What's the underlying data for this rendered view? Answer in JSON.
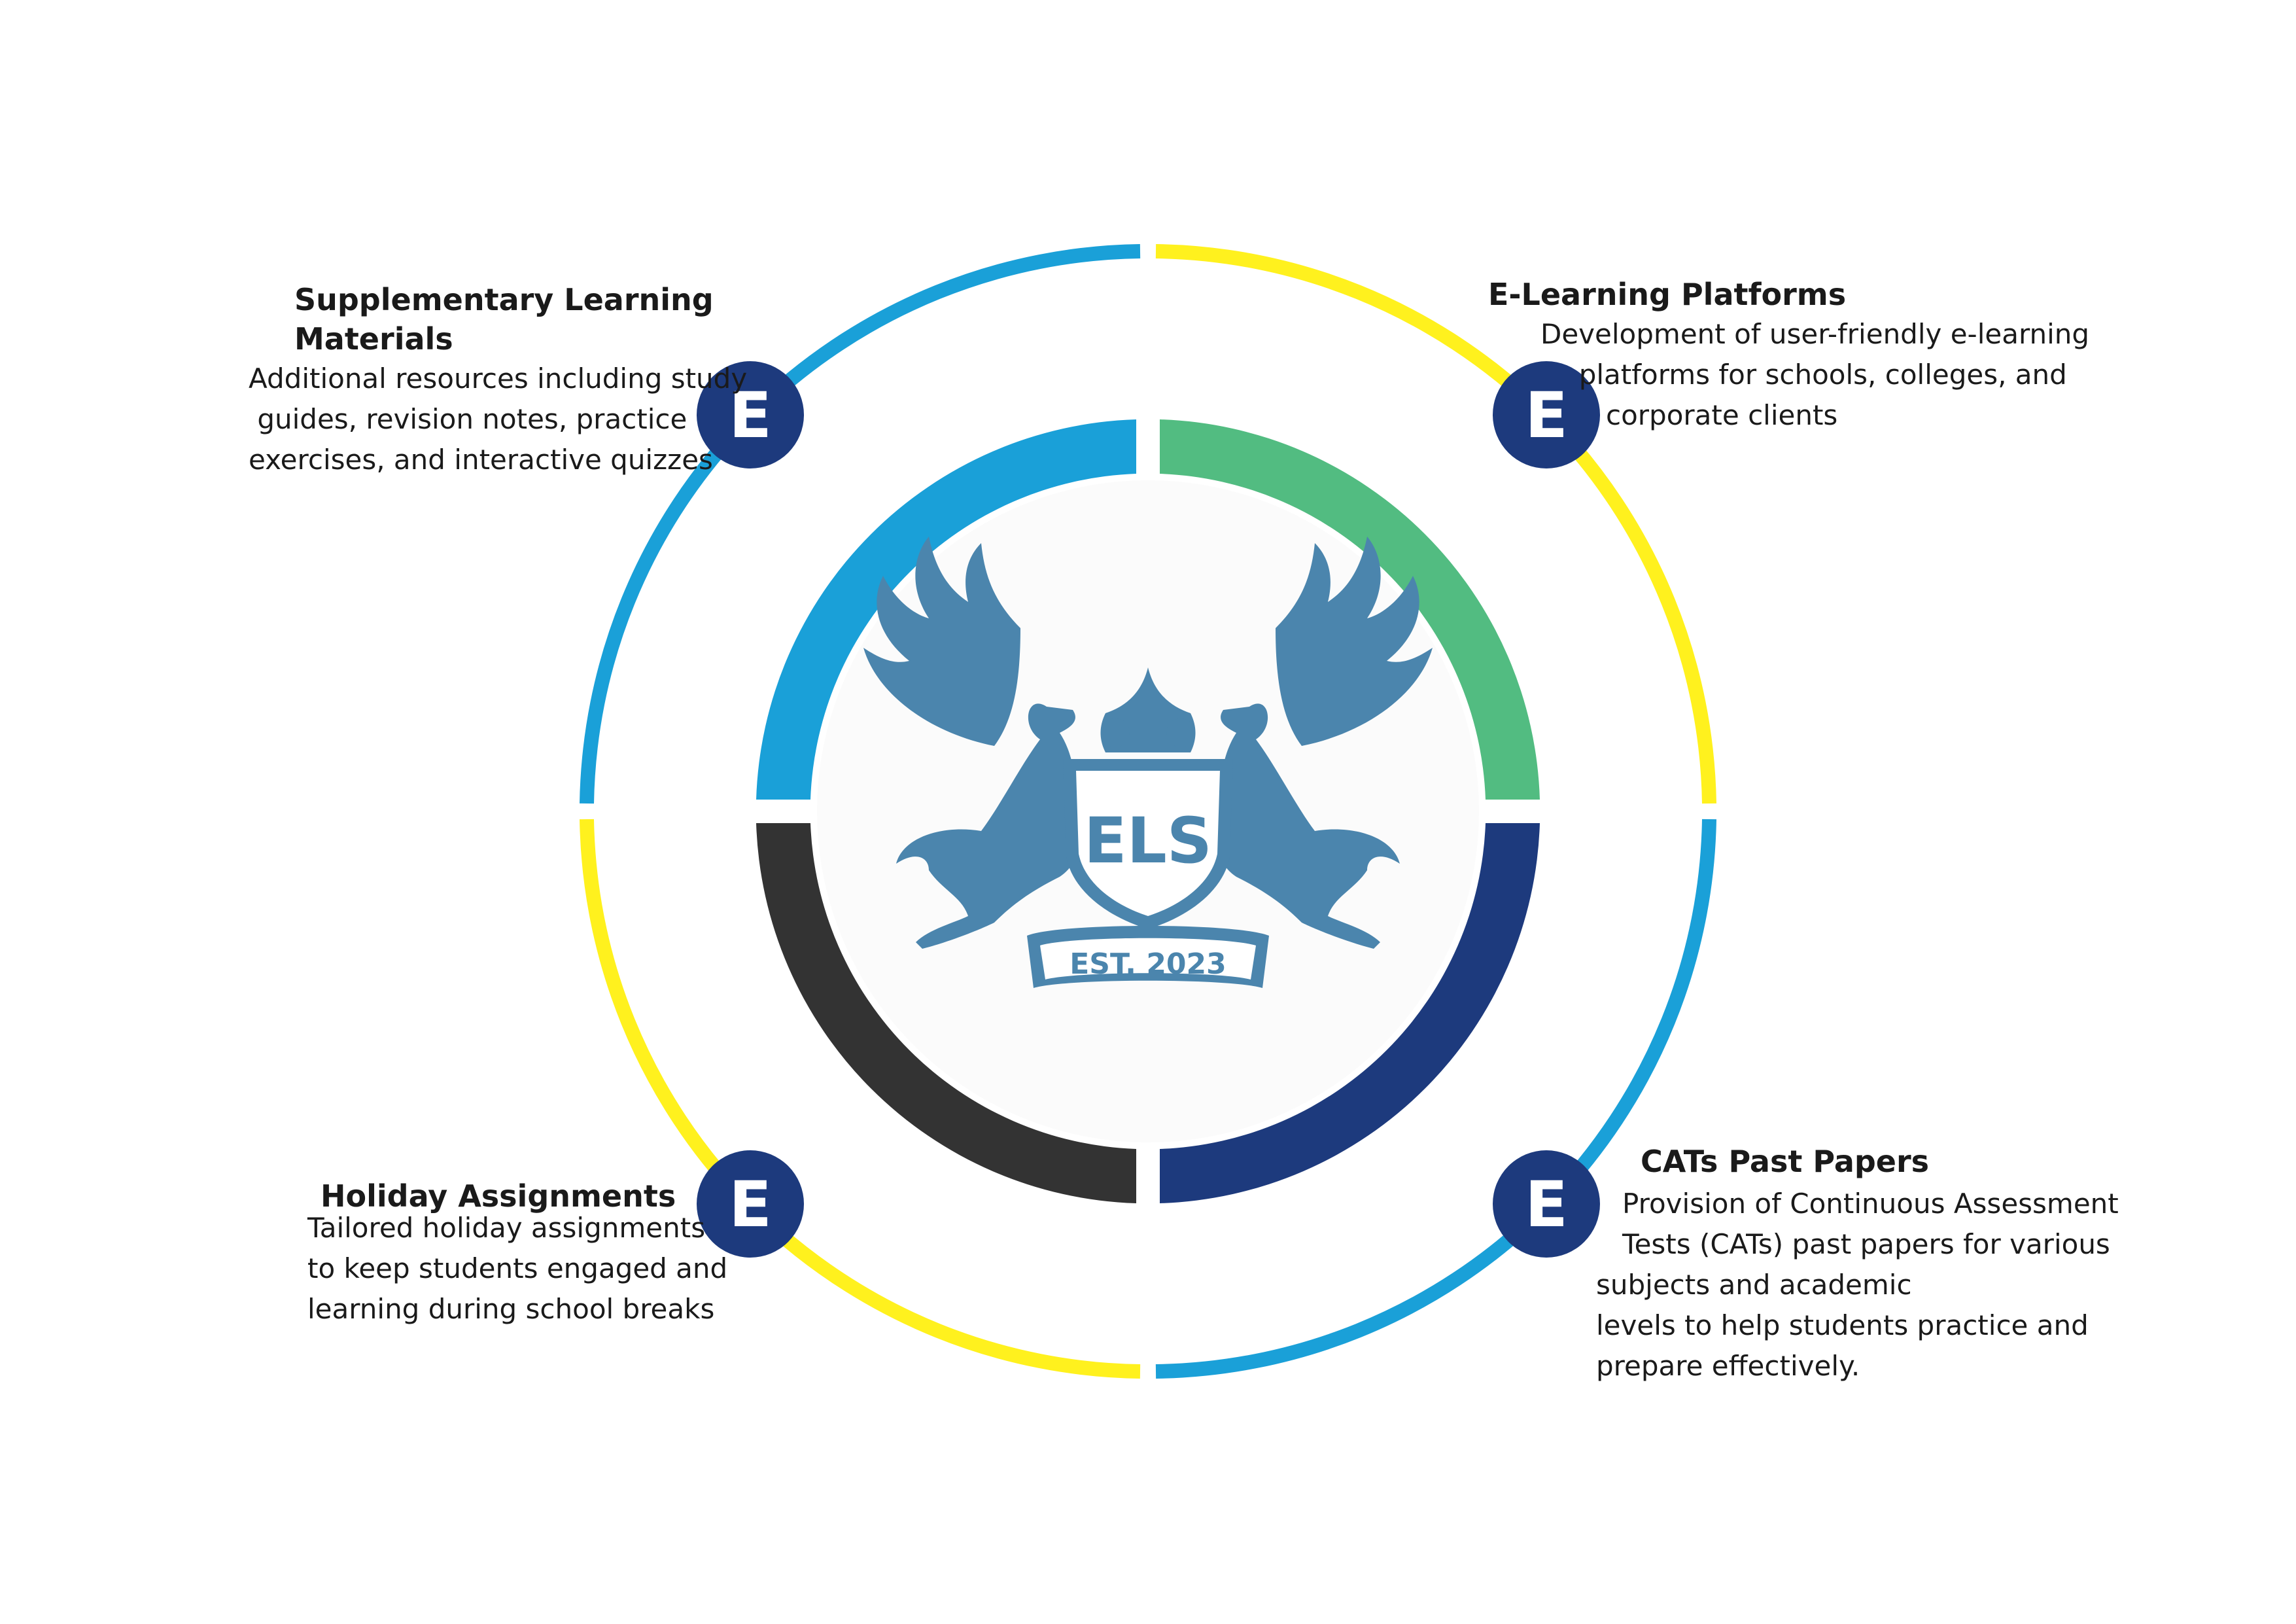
{
  "colors": {
    "outer_blue": "#1aa0d8",
    "outer_yellow": "#fff11e",
    "inner_blue": "#1aa0d8",
    "inner_green": "#52bc81",
    "inner_dark": "#333333",
    "inner_navy": "#1d3a7d",
    "badge": "#1d3a7d",
    "crest": "#4b85ad",
    "center_bg": "#fbfbfb"
  },
  "badge_icon": "E-letter-icon",
  "crest": {
    "icon": "winged-horses-shield-crest",
    "monogram": "ELS",
    "established": "EST. 2023"
  },
  "sections": {
    "supplementary": {
      "title": "Supplementary Learning Materials",
      "lines": [
        "Additional resources including study",
        " guides, revision notes, practice",
        "exercises, and interactive quizzes"
      ]
    },
    "elearning": {
      "title": "E-Learning Platforms",
      "lines": [
        "Development of user-friendly e-learning",
        "  platforms for schools, colleges, and",
        "corporate clients"
      ]
    },
    "holiday": {
      "title": "Holiday Assignments",
      "lines": [
        "Tailored holiday assignments",
        "to keep students engaged and",
        "learning during school breaks"
      ]
    },
    "cats": {
      "title": "CATs Past Papers",
      "lines": [
        "   Provision of Continuous Assessment",
        "   Tests (CATs) past papers for various",
        "subjects and academic",
        "levels to help students practice and",
        "prepare effectively."
      ]
    }
  }
}
